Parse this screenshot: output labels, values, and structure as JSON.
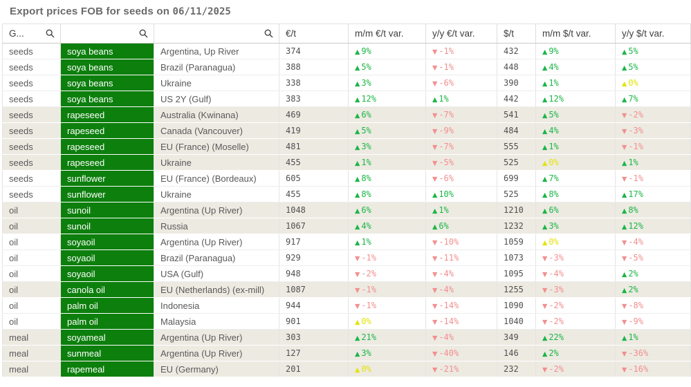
{
  "title": {
    "text": "Export prices FOB for seeds on",
    "date": "06/11/2025"
  },
  "icons": {
    "search": "magnifier-icon",
    "sort_desc": "▼",
    "up_arrow": "▲",
    "down_arrow": "▼"
  },
  "colors": {
    "product_cell_green": "#0d7f0d",
    "up_green": "#1bb646",
    "down_red": "#f28f8f",
    "zero_yellow": "#e3e30e",
    "shaded_row": "#edeae2",
    "title_gray": "#6a6a6a"
  },
  "columns": [
    {
      "key": "group",
      "label": "G...",
      "search": true,
      "sorted_desc": true,
      "type": "text"
    },
    {
      "key": "product",
      "label": "",
      "search": true,
      "type": "product"
    },
    {
      "key": "origin",
      "label": "",
      "search": true,
      "type": "text"
    },
    {
      "key": "eur",
      "label": "€/t",
      "search": false,
      "type": "num"
    },
    {
      "key": "mm_eur",
      "label": "m/m €/t var.",
      "search": false,
      "type": "var"
    },
    {
      "key": "yy_eur",
      "label": "y/y €/t var.",
      "search": false,
      "type": "var"
    },
    {
      "key": "usd",
      "label": "$/t",
      "search": false,
      "type": "num"
    },
    {
      "key": "mm_usd",
      "label": "m/m $/t var.",
      "search": false,
      "type": "var"
    },
    {
      "key": "yy_usd",
      "label": "y/y $/t var.",
      "search": false,
      "type": "var"
    }
  ],
  "rows": [
    {
      "group": "seeds",
      "product": "soya beans",
      "origin": "Argentina, Up River",
      "eur": "374",
      "mm_eur": {
        "arrow": "up",
        "text": "9%",
        "tone": "green"
      },
      "yy_eur": {
        "arrow": "down",
        "text": "-1%",
        "tone": "red"
      },
      "usd": "432",
      "mm_usd": {
        "arrow": "up",
        "text": "9%",
        "tone": "green"
      },
      "yy_usd": {
        "arrow": "up",
        "text": "5%",
        "tone": "green"
      },
      "shaded": false
    },
    {
      "group": "seeds",
      "product": "soya beans",
      "origin": "Brazil (Paranagua)",
      "eur": "388",
      "mm_eur": {
        "arrow": "up",
        "text": "5%",
        "tone": "green"
      },
      "yy_eur": {
        "arrow": "down",
        "text": "-1%",
        "tone": "red"
      },
      "usd": "448",
      "mm_usd": {
        "arrow": "up",
        "text": "4%",
        "tone": "green"
      },
      "yy_usd": {
        "arrow": "up",
        "text": "5%",
        "tone": "green"
      },
      "shaded": false
    },
    {
      "group": "seeds",
      "product": "soya beans",
      "origin": "Ukraine",
      "eur": "338",
      "mm_eur": {
        "arrow": "up",
        "text": "3%",
        "tone": "green"
      },
      "yy_eur": {
        "arrow": "down",
        "text": "-6%",
        "tone": "red"
      },
      "usd": "390",
      "mm_usd": {
        "arrow": "up",
        "text": "1%",
        "tone": "green"
      },
      "yy_usd": {
        "arrow": "up",
        "text": "0%",
        "tone": "yellow"
      },
      "shaded": false
    },
    {
      "group": "seeds",
      "product": "soya beans",
      "origin": "US 2Y (Gulf)",
      "eur": "383",
      "mm_eur": {
        "arrow": "up",
        "text": "12%",
        "tone": "green"
      },
      "yy_eur": {
        "arrow": "up",
        "text": "1%",
        "tone": "green"
      },
      "usd": "442",
      "mm_usd": {
        "arrow": "up",
        "text": "12%",
        "tone": "green"
      },
      "yy_usd": {
        "arrow": "up",
        "text": "7%",
        "tone": "green"
      },
      "shaded": false
    },
    {
      "group": "seeds",
      "product": "rapeseed",
      "origin": "Australia (Kwinana)",
      "eur": "469",
      "mm_eur": {
        "arrow": "up",
        "text": "6%",
        "tone": "green"
      },
      "yy_eur": {
        "arrow": "down",
        "text": "-7%",
        "tone": "red"
      },
      "usd": "541",
      "mm_usd": {
        "arrow": "up",
        "text": "5%",
        "tone": "green"
      },
      "yy_usd": {
        "arrow": "down",
        "text": "-2%",
        "tone": "red"
      },
      "shaded": true
    },
    {
      "group": "seeds",
      "product": "rapeseed",
      "origin": "Canada (Vancouver)",
      "eur": "419",
      "mm_eur": {
        "arrow": "up",
        "text": "5%",
        "tone": "green"
      },
      "yy_eur": {
        "arrow": "down",
        "text": "-9%",
        "tone": "red"
      },
      "usd": "484",
      "mm_usd": {
        "arrow": "up",
        "text": "4%",
        "tone": "green"
      },
      "yy_usd": {
        "arrow": "down",
        "text": "-3%",
        "tone": "red"
      },
      "shaded": true
    },
    {
      "group": "seeds",
      "product": "rapeseed",
      "origin": "EU (France) (Moselle)",
      "eur": "481",
      "mm_eur": {
        "arrow": "up",
        "text": "3%",
        "tone": "green"
      },
      "yy_eur": {
        "arrow": "down",
        "text": "-7%",
        "tone": "red"
      },
      "usd": "555",
      "mm_usd": {
        "arrow": "up",
        "text": "1%",
        "tone": "green"
      },
      "yy_usd": {
        "arrow": "down",
        "text": "-1%",
        "tone": "red"
      },
      "shaded": true
    },
    {
      "group": "seeds",
      "product": "rapeseed",
      "origin": "Ukraine",
      "eur": "455",
      "mm_eur": {
        "arrow": "up",
        "text": "1%",
        "tone": "green"
      },
      "yy_eur": {
        "arrow": "down",
        "text": "-5%",
        "tone": "red"
      },
      "usd": "525",
      "mm_usd": {
        "arrow": "up",
        "text": "0%",
        "tone": "yellow"
      },
      "yy_usd": {
        "arrow": "up",
        "text": "1%",
        "tone": "green"
      },
      "shaded": true
    },
    {
      "group": "seeds",
      "product": "sunflower",
      "origin": "EU (France) (Bordeaux)",
      "eur": "605",
      "mm_eur": {
        "arrow": "up",
        "text": "8%",
        "tone": "green"
      },
      "yy_eur": {
        "arrow": "down",
        "text": "-6%",
        "tone": "red"
      },
      "usd": "699",
      "mm_usd": {
        "arrow": "up",
        "text": "7%",
        "tone": "green"
      },
      "yy_usd": {
        "arrow": "down",
        "text": "-1%",
        "tone": "red"
      },
      "shaded": false
    },
    {
      "group": "seeds",
      "product": "sunflower",
      "origin": "Ukraine",
      "eur": "455",
      "mm_eur": {
        "arrow": "up",
        "text": "8%",
        "tone": "green"
      },
      "yy_eur": {
        "arrow": "up",
        "text": "10%",
        "tone": "green"
      },
      "usd": "525",
      "mm_usd": {
        "arrow": "up",
        "text": "8%",
        "tone": "green"
      },
      "yy_usd": {
        "arrow": "up",
        "text": "17%",
        "tone": "green"
      },
      "shaded": false
    },
    {
      "group": "oil",
      "product": "sunoil",
      "origin": "Argentina (Up River)",
      "eur": "1048",
      "mm_eur": {
        "arrow": "up",
        "text": "6%",
        "tone": "green"
      },
      "yy_eur": {
        "arrow": "up",
        "text": "1%",
        "tone": "green"
      },
      "usd": "1210",
      "mm_usd": {
        "arrow": "up",
        "text": "6%",
        "tone": "green"
      },
      "yy_usd": {
        "arrow": "up",
        "text": "8%",
        "tone": "green"
      },
      "shaded": true
    },
    {
      "group": "oil",
      "product": "sunoil",
      "origin": "Russia",
      "eur": "1067",
      "mm_eur": {
        "arrow": "up",
        "text": "4%",
        "tone": "green"
      },
      "yy_eur": {
        "arrow": "up",
        "text": "6%",
        "tone": "green"
      },
      "usd": "1232",
      "mm_usd": {
        "arrow": "up",
        "text": "3%",
        "tone": "green"
      },
      "yy_usd": {
        "arrow": "up",
        "text": "12%",
        "tone": "green"
      },
      "shaded": true
    },
    {
      "group": "oil",
      "product": "soyaoil",
      "origin": "Argentina (Up River)",
      "eur": "917",
      "mm_eur": {
        "arrow": "up",
        "text": "1%",
        "tone": "green"
      },
      "yy_eur": {
        "arrow": "down",
        "text": "-10%",
        "tone": "red"
      },
      "usd": "1059",
      "mm_usd": {
        "arrow": "up",
        "text": "0%",
        "tone": "yellow"
      },
      "yy_usd": {
        "arrow": "down",
        "text": "-4%",
        "tone": "red"
      },
      "shaded": false
    },
    {
      "group": "oil",
      "product": "soyaoil",
      "origin": "Brazil (Paranagua)",
      "eur": "929",
      "mm_eur": {
        "arrow": "down",
        "text": "-1%",
        "tone": "red"
      },
      "yy_eur": {
        "arrow": "down",
        "text": "-11%",
        "tone": "red"
      },
      "usd": "1073",
      "mm_usd": {
        "arrow": "down",
        "text": "-3%",
        "tone": "red"
      },
      "yy_usd": {
        "arrow": "down",
        "text": "-5%",
        "tone": "red"
      },
      "shaded": false
    },
    {
      "group": "oil",
      "product": "soyaoil",
      "origin": "USA (Gulf)",
      "eur": "948",
      "mm_eur": {
        "arrow": "down",
        "text": "-2%",
        "tone": "red"
      },
      "yy_eur": {
        "arrow": "down",
        "text": "-4%",
        "tone": "red"
      },
      "usd": "1095",
      "mm_usd": {
        "arrow": "down",
        "text": "-4%",
        "tone": "red"
      },
      "yy_usd": {
        "arrow": "up",
        "text": "2%",
        "tone": "green"
      },
      "shaded": false
    },
    {
      "group": "oil",
      "product": "canola oil",
      "origin": "EU (Netherlands) (ex-mill)",
      "eur": "1087",
      "mm_eur": {
        "arrow": "down",
        "text": "-1%",
        "tone": "red"
      },
      "yy_eur": {
        "arrow": "down",
        "text": "-4%",
        "tone": "red"
      },
      "usd": "1255",
      "mm_usd": {
        "arrow": "down",
        "text": "-3%",
        "tone": "red"
      },
      "yy_usd": {
        "arrow": "up",
        "text": "2%",
        "tone": "green"
      },
      "shaded": true
    },
    {
      "group": "oil",
      "product": "palm oil",
      "origin": "Indonesia",
      "eur": "944",
      "mm_eur": {
        "arrow": "down",
        "text": "-1%",
        "tone": "red"
      },
      "yy_eur": {
        "arrow": "down",
        "text": "-14%",
        "tone": "red"
      },
      "usd": "1090",
      "mm_usd": {
        "arrow": "down",
        "text": "-2%",
        "tone": "red"
      },
      "yy_usd": {
        "arrow": "down",
        "text": "-8%",
        "tone": "red"
      },
      "shaded": false
    },
    {
      "group": "oil",
      "product": "palm oil",
      "origin": "Malaysia",
      "eur": "901",
      "mm_eur": {
        "arrow": "up",
        "text": "0%",
        "tone": "yellow"
      },
      "yy_eur": {
        "arrow": "down",
        "text": "-14%",
        "tone": "red"
      },
      "usd": "1040",
      "mm_usd": {
        "arrow": "down",
        "text": "-2%",
        "tone": "red"
      },
      "yy_usd": {
        "arrow": "down",
        "text": "-9%",
        "tone": "red"
      },
      "shaded": false
    },
    {
      "group": "meal",
      "product": "soyameal",
      "origin": "Argentina (Up River)",
      "eur": "303",
      "mm_eur": {
        "arrow": "up",
        "text": "21%",
        "tone": "green"
      },
      "yy_eur": {
        "arrow": "down",
        "text": "-4%",
        "tone": "red"
      },
      "usd": "349",
      "mm_usd": {
        "arrow": "up",
        "text": "22%",
        "tone": "green"
      },
      "yy_usd": {
        "arrow": "up",
        "text": "1%",
        "tone": "green"
      },
      "shaded": true
    },
    {
      "group": "meal",
      "product": "sunmeal",
      "origin": "Argentina (Up River)",
      "eur": "127",
      "mm_eur": {
        "arrow": "up",
        "text": "3%",
        "tone": "green"
      },
      "yy_eur": {
        "arrow": "down",
        "text": "-40%",
        "tone": "red"
      },
      "usd": "146",
      "mm_usd": {
        "arrow": "up",
        "text": "2%",
        "tone": "green"
      },
      "yy_usd": {
        "arrow": "down",
        "text": "-36%",
        "tone": "red"
      },
      "shaded": true
    },
    {
      "group": "meal",
      "product": "rapemeal",
      "origin": "EU (Germany)",
      "eur": "201",
      "mm_eur": {
        "arrow": "up",
        "text": "0%",
        "tone": "yellow"
      },
      "yy_eur": {
        "arrow": "down",
        "text": "-21%",
        "tone": "red"
      },
      "usd": "232",
      "mm_usd": {
        "arrow": "down",
        "text": "-2%",
        "tone": "red"
      },
      "yy_usd": {
        "arrow": "down",
        "text": "-16%",
        "tone": "red"
      },
      "shaded": true
    }
  ]
}
